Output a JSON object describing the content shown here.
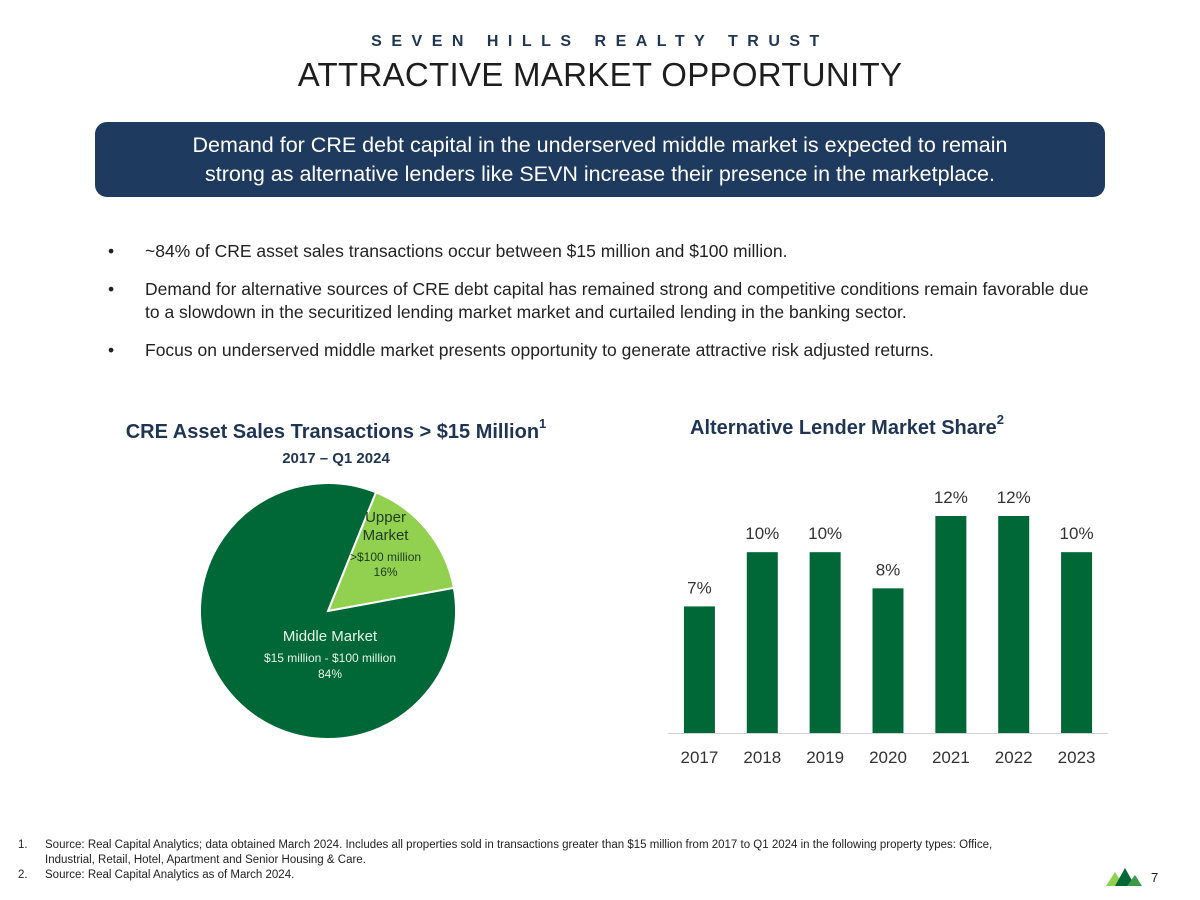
{
  "header": {
    "company": "SEVEN HILLS REALTY TRUST",
    "title": "ATTRACTIVE MARKET OPPORTUNITY"
  },
  "banner": {
    "line1": "Demand for CRE debt capital in the underserved middle market is expected to remain",
    "line2": "strong as alternative lenders like SEVN increase their presence in the marketplace."
  },
  "bullets": [
    "~84% of CRE asset sales transactions occur between $15 million and $100 million.",
    "Demand for alternative sources of CRE debt capital has remained strong and competitive conditions remain favorable due to a slowdown in the securitized lending market market and curtailed lending in the banking sector.",
    "Focus on underserved middle market presents opportunity to generate attractive risk adjusted returns."
  ],
  "chart_data": [
    {
      "type": "pie",
      "title": "CRE Asset Sales Transactions > $15 Million",
      "title_sup": "1",
      "subtitle": "2017 –  Q1 2024",
      "slices": [
        {
          "name": "Upper Market",
          "name_lines": [
            "Upper",
            "Market"
          ],
          "range": ">$100 million",
          "value": 16,
          "label": "16%",
          "color": "#92d050"
        },
        {
          "name": "Middle Market",
          "name_lines": [
            "Middle Market"
          ],
          "range": "$15 million - $100 million",
          "value": 84,
          "label": "84%",
          "color": "#006837"
        }
      ]
    },
    {
      "type": "bar",
      "title": "Alternative Lender Market Share",
      "title_sup": "2",
      "categories": [
        "2017",
        "2018",
        "2019",
        "2020",
        "2021",
        "2022",
        "2023"
      ],
      "values": [
        7,
        10,
        10,
        8,
        12,
        12,
        10
      ],
      "labels": [
        "7%",
        "10%",
        "10%",
        "8%",
        "12%",
        "12%",
        "10%"
      ],
      "unit": "%",
      "ylim": [
        0,
        12
      ],
      "color": "#006837"
    }
  ],
  "footnotes": [
    {
      "num": "1.",
      "text": "Source: Real Capital Analytics; data obtained March 2024. Includes all properties sold in transactions greater than $15 million from 2017 to Q1 2024 in the following property types: Office, Industrial, Retail, Hotel, Apartment and Senior Housing & Care."
    },
    {
      "num": "2.",
      "text": "Source: Real Capital Analytics as of March 2024."
    }
  ],
  "page_number": "7",
  "colors": {
    "navy": "#1f3a5f",
    "dark_green": "#006837",
    "light_green": "#92d050"
  }
}
